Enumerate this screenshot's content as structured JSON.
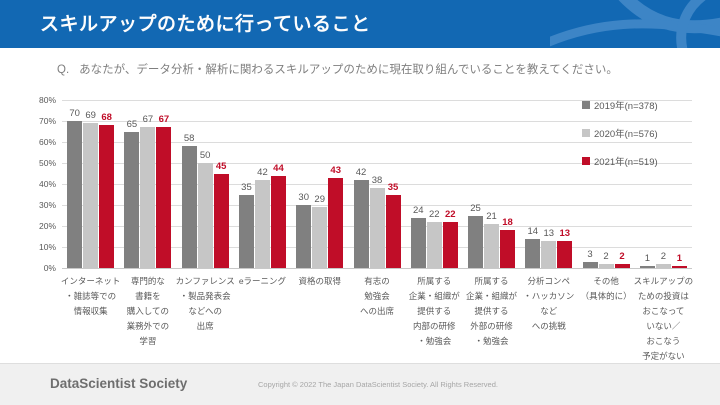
{
  "header": {
    "title": "スキルアップのために行っていること"
  },
  "question": {
    "prefix": "Q.",
    "text": "あなたが、データ分析・解析に関わるスキルアップのために現在取り組んでいることを教えてください。"
  },
  "chart_data": {
    "type": "bar",
    "title": "スキルアップのために行っていること",
    "ylabel": "",
    "xlabel": "",
    "ylim": [
      0,
      80
    ],
    "ytick_step": 10,
    "ytick_suffix": "%",
    "grid": true,
    "legend_position": "top-right",
    "categories": [
      "インターネット・雑誌等での情報収集",
      "専門的な書籍を購入しての業務外での学習",
      "カンファレンス・製品発表会などへの出席",
      "eラーニング",
      "資格の取得",
      "有志の勉強会への出席",
      "所属する企業・組織が提供する内部の研修・勉強会",
      "所属する企業・組織が提供する外部の研修・勉強会",
      "分析コンペ・ハッカソンなどへの挑戦",
      "その他（具体的に）",
      "スキルアップのための投資はおこなっていない／おこなう予定がない"
    ],
    "category_lines": [
      [
        "インターネット",
        "・雑誌等での",
        "情報収集"
      ],
      [
        "専門的な",
        "書籍を",
        "購入しての",
        "業務外での",
        "学習"
      ],
      [
        "カンファレンス",
        "・製品発表会",
        "などへの",
        "出席"
      ],
      [
        "eラーニング"
      ],
      [
        "資格の取得"
      ],
      [
        "有志の",
        "勉強会",
        "への出席"
      ],
      [
        "所属する",
        "企業・組織が",
        "提供する",
        "内部の研修",
        "・勉強会"
      ],
      [
        "所属する",
        "企業・組織が",
        "提供する",
        "外部の研修",
        "・勉強会"
      ],
      [
        "分析コンペ",
        "・ハッカソン",
        "など",
        "への挑戦"
      ],
      [
        "その他",
        "（具体的に）"
      ],
      [
        "スキルアップの",
        "ための投資は",
        "おこなって",
        "いない／",
        "おこなう",
        "予定がない"
      ]
    ],
    "series": [
      {
        "name": "2019年(n=378)",
        "color": "#808080",
        "values": [
          70,
          65,
          58,
          35,
          30,
          42,
          24,
          25,
          14,
          3,
          1
        ]
      },
      {
        "name": "2020年(n=576)",
        "color": "#C6C6C6",
        "values": [
          69,
          67,
          50,
          42,
          29,
          38,
          22,
          21,
          13,
          2,
          2
        ]
      },
      {
        "name": "2021年(n=519)",
        "color": "#C00D28",
        "values": [
          68,
          67,
          45,
          44,
          43,
          35,
          22,
          18,
          13,
          2,
          1
        ]
      }
    ]
  },
  "footer": {
    "logo": "DataScientist Society",
    "copyright": "Copyright © 2022  The Japan DataScientist Society. All Rights Reserved."
  },
  "colors": {
    "header_bg": "#1268B3",
    "header_accent": "#3D85C6",
    "bar_2019": "#808080",
    "bar_2020": "#C6C6C6",
    "bar_2021": "#C00D28",
    "footer_bg": "#F0F0F0"
  }
}
